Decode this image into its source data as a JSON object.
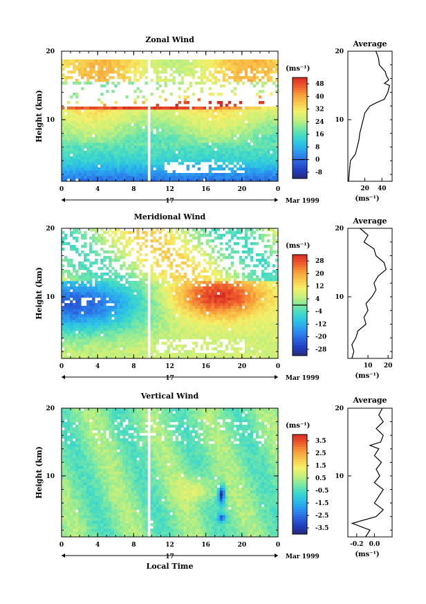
{
  "figure": {
    "date_label": "Mar 1999",
    "day_label": "17",
    "x_axis_title": "Local Time",
    "y_axis_title": "Height (km)",
    "unit_label": "(ms⁻¹)"
  },
  "chart_data": [
    {
      "type": "heatmap",
      "title": "Zonal Wind",
      "xlabel": "",
      "ylabel": "Height (km)",
      "x_ticks": [
        "0",
        "4",
        "8",
        "12",
        "16",
        "20",
        "0"
      ],
      "xlim": [
        0,
        24
      ],
      "y_ticks": [
        "10",
        "20"
      ],
      "ylim": [
        1,
        20
      ],
      "gap_hours": [
        9.6,
        10.0
      ],
      "colorbar": {
        "unit": "(ms⁻¹)",
        "ticks": [
          "48",
          "40",
          "32",
          "24",
          "16",
          "8",
          "0",
          "-8"
        ],
        "range": [
          -12,
          52
        ],
        "zero_line": 0
      },
      "average_profile": {
        "title": "Average",
        "x_ticks": [
          "20",
          "40"
        ],
        "xlim": [
          0,
          52
        ],
        "unit": "(ms⁻¹)",
        "points": [
          [
            1,
            1
          ],
          [
            1.5,
            2
          ],
          [
            3,
            4
          ],
          [
            6,
            4.5
          ],
          [
            9,
            5
          ],
          [
            11,
            6
          ],
          [
            13,
            7
          ],
          [
            14,
            8
          ],
          [
            16,
            9
          ],
          [
            18,
            10
          ],
          [
            20,
            11
          ],
          [
            23,
            11.5
          ],
          [
            26,
            12
          ],
          [
            34,
            12.5
          ],
          [
            43,
            13
          ],
          [
            47,
            14
          ],
          [
            49,
            15
          ],
          [
            43,
            15.3
          ],
          [
            48,
            15.8
          ],
          [
            45,
            16.5
          ],
          [
            44,
            17
          ],
          [
            37,
            18
          ],
          [
            36,
            19
          ],
          [
            33,
            20
          ]
        ]
      }
    },
    {
      "type": "heatmap",
      "title": "Meridional Wind",
      "xlabel": "",
      "ylabel": "Height (km)",
      "x_ticks": [
        "0",
        "4",
        "8",
        "12",
        "16",
        "20",
        "0"
      ],
      "xlim": [
        0,
        24
      ],
      "y_ticks": [
        "10",
        "20"
      ],
      "ylim": [
        1,
        20
      ],
      "gap_hours": [
        9.6,
        10.0
      ],
      "colorbar": {
        "unit": "(ms⁻¹)",
        "ticks": [
          "28",
          "20",
          "12",
          "4",
          "-4",
          "-12",
          "-20",
          "-28"
        ],
        "range": [
          -32,
          32
        ],
        "zero_line": 0
      },
      "average_profile": {
        "title": "Average",
        "x_ticks": [
          "10",
          "20"
        ],
        "xlim": [
          0,
          22
        ],
        "unit": "(ms⁻¹)",
        "points": [
          [
            2,
            1
          ],
          [
            3,
            2
          ],
          [
            2,
            3
          ],
          [
            4,
            4
          ],
          [
            5,
            5
          ],
          [
            9,
            6
          ],
          [
            8,
            7
          ],
          [
            10,
            8
          ],
          [
            9,
            9
          ],
          [
            12,
            10
          ],
          [
            14,
            11
          ],
          [
            13,
            12
          ],
          [
            15,
            13
          ],
          [
            19,
            14
          ],
          [
            18,
            15
          ],
          [
            14,
            16
          ],
          [
            13,
            17
          ],
          [
            8,
            18
          ],
          [
            10,
            19
          ],
          [
            6,
            20
          ]
        ]
      }
    },
    {
      "type": "heatmap",
      "title": "Vertical Wind",
      "xlabel": "Local Time",
      "ylabel": "Height (km)",
      "x_ticks": [
        "0",
        "4",
        "8",
        "12",
        "16",
        "20",
        "0"
      ],
      "xlim": [
        0,
        24
      ],
      "y_ticks": [
        "10",
        "20"
      ],
      "ylim": [
        1,
        20
      ],
      "gap_hours": [
        9.6,
        10.0
      ],
      "colorbar": {
        "unit": "(ms⁻¹)",
        "ticks": [
          "3.5",
          "2.5",
          "1.5",
          "0.5",
          "-0.5",
          "-1.5",
          "-2.5",
          "-3.5"
        ],
        "range": [
          -4,
          4
        ],
        "zero_line": null
      },
      "average_profile": {
        "title": "Average",
        "x_ticks": [
          "-0.2",
          "0.0"
        ],
        "xlim": [
          -0.3,
          0.2
        ],
        "unit": "(ms⁻¹)",
        "points": [
          [
            -0.1,
            1
          ],
          [
            -0.05,
            2
          ],
          [
            -0.25,
            3
          ],
          [
            0.02,
            4
          ],
          [
            0.1,
            5
          ],
          [
            0.0,
            6
          ],
          [
            0.05,
            7
          ],
          [
            0.1,
            8
          ],
          [
            0.0,
            9
          ],
          [
            0.06,
            10
          ],
          [
            0.02,
            11
          ],
          [
            0.08,
            12
          ],
          [
            0.0,
            13
          ],
          [
            0.05,
            14
          ],
          [
            -0.05,
            14.5
          ],
          [
            0.07,
            15
          ],
          [
            0.1,
            16
          ],
          [
            0.02,
            17
          ],
          [
            0.1,
            18
          ],
          [
            0.05,
            19
          ],
          [
            0.09,
            20
          ]
        ]
      }
    }
  ]
}
